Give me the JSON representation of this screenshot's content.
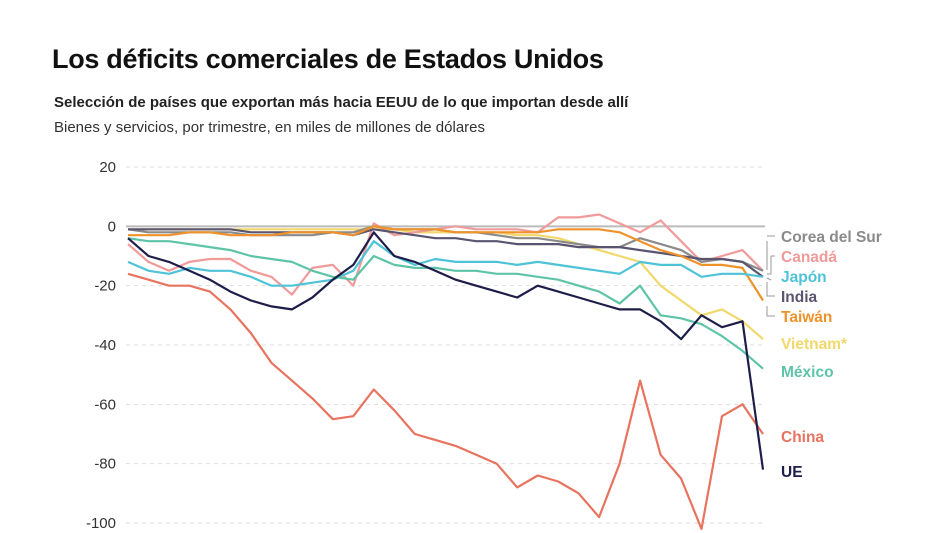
{
  "header": {
    "title": "Los déficits comerciales de Estados Unidos",
    "subtitle": "Selección de países que exportan más hacia EEUU de lo que importan desde allí",
    "note": "Bienes y servicios, por trimestre, en miles de millones de dólares"
  },
  "chart_data": {
    "type": "line",
    "title": "Los déficits comerciales de Estados Unidos",
    "ylabel": "",
    "xlabel": "",
    "ylim": [
      -100,
      20
    ],
    "yticks": [
      20,
      0,
      -20,
      -40,
      -60,
      -80,
      -100
    ],
    "grid": true,
    "legend": "right (labels at line ends)",
    "series": [
      {
        "name": "Corea del Sur",
        "color": "#8a8a8a",
        "values": [
          -1,
          -2,
          -2,
          -2,
          -2,
          -2,
          -3,
          -3,
          -3,
          -3,
          -2,
          -2,
          0,
          -1,
          -1,
          -1,
          -2,
          -2,
          -3,
          -4,
          -4,
          -5,
          -6,
          -7,
          -7,
          -4,
          -6,
          -8,
          -12,
          -11,
          -12,
          -15
        ]
      },
      {
        "name": "Canadá",
        "color": "#f09a9a",
        "values": [
          -6,
          -12,
          -15,
          -12,
          -11,
          -11,
          -15,
          -17,
          -23,
          -14,
          -13,
          -20,
          1,
          -3,
          -2,
          -1,
          0,
          -1,
          -1,
          -1,
          -2,
          3,
          3,
          4,
          1,
          -2,
          2,
          -5,
          -12,
          -10,
          -8,
          -15
        ]
      },
      {
        "name": "Japón",
        "color": "#4ec3d8",
        "values": [
          -12,
          -15,
          -16,
          -14,
          -15,
          -15,
          -17,
          -20,
          -20,
          -19,
          -18,
          -15,
          -5,
          -10,
          -13,
          -11,
          -12,
          -12,
          -12,
          -13,
          -12,
          -13,
          -14,
          -15,
          -16,
          -12,
          -13,
          -13,
          -17,
          -16,
          -16,
          -17
        ]
      },
      {
        "name": "India",
        "color": "#5b5470",
        "values": [
          -1,
          -1,
          -1,
          -1,
          -1,
          -1,
          -2,
          -2,
          -2,
          -2,
          -2,
          -3,
          -1,
          -2,
          -3,
          -4,
          -4,
          -5,
          -5,
          -6,
          -6,
          -6,
          -7,
          -7,
          -7,
          -8,
          -9,
          -10,
          -11,
          -11,
          -12,
          -17
        ]
      },
      {
        "name": "Taiwán",
        "color": "#f0922a",
        "values": [
          -3,
          -3,
          -3,
          -2,
          -2,
          -3,
          -3,
          -3,
          -2,
          -2,
          -2,
          -3,
          0,
          -1,
          -1,
          -1,
          -2,
          -2,
          -2,
          -2,
          -2,
          -1,
          -1,
          -1,
          -2,
          -5,
          -8,
          -10,
          -13,
          -13,
          -14,
          -25
        ]
      },
      {
        "name": "Vietnam*",
        "color": "#f2d86a",
        "values": [
          -1,
          -1,
          -1,
          -1,
          -1,
          -1,
          -1,
          -1,
          -1,
          -1,
          -1,
          -1,
          -1,
          -1,
          -2,
          -2,
          -2,
          -2,
          -2,
          -3,
          -3,
          -4,
          -6,
          -8,
          -10,
          -12,
          -20,
          -25,
          -30,
          -28,
          -32,
          -38
        ]
      },
      {
        "name": "México",
        "color": "#5ec4a8",
        "values": [
          -4,
          -5,
          -5,
          -6,
          -7,
          -8,
          -10,
          -11,
          -12,
          -15,
          -17,
          -18,
          -10,
          -13,
          -14,
          -14,
          -15,
          -15,
          -16,
          -16,
          -17,
          -18,
          -20,
          -22,
          -26,
          -20,
          -30,
          -31,
          -33,
          -37,
          -42,
          -48
        ]
      },
      {
        "name": "China",
        "color": "#e8735f",
        "values": [
          -16,
          -18,
          -20,
          -20,
          -22,
          -28,
          -36,
          -46,
          -52,
          -58,
          -65,
          -64,
          -55,
          -62,
          -70,
          -72,
          -74,
          -77,
          -80,
          -88,
          -84,
          -86,
          -90,
          -98,
          -80,
          -52,
          -77,
          -85,
          -102,
          -64,
          -60,
          -70
        ]
      },
      {
        "name": "UE",
        "color": "#1d1d4a",
        "values": [
          -4,
          -10,
          -12,
          -15,
          -18,
          -22,
          -25,
          -27,
          -28,
          -24,
          -18,
          -13,
          -2,
          -10,
          -12,
          -15,
          -18,
          -20,
          -22,
          -24,
          -20,
          -22,
          -24,
          -26,
          -28,
          -28,
          -32,
          -38,
          -30,
          -34,
          -32,
          -82
        ]
      }
    ]
  }
}
